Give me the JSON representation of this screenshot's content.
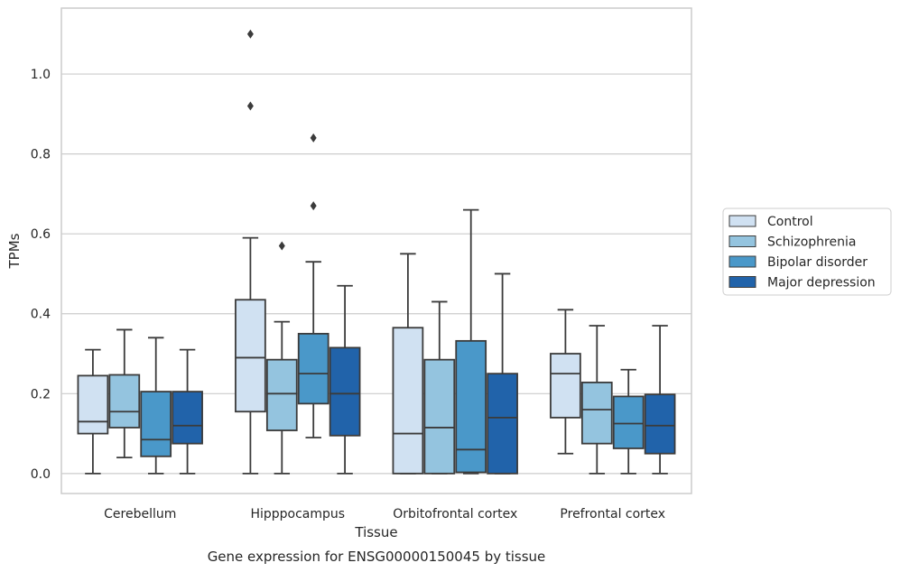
{
  "chart_data": {
    "type": "box",
    "title": "Gene expression for ENSG00000150045 by tissue",
    "xlabel": "Tissue",
    "ylabel": "TPMs",
    "ylim": [
      -0.05,
      1.165
    ],
    "yticks": [
      "0.0",
      "0.2",
      "0.4",
      "0.6",
      "0.8",
      "1.0"
    ],
    "grid": "horizontal",
    "legend_position": "right",
    "categories": [
      "Cerebellum",
      "Hipppocampus",
      "Orbitofrontal cortex",
      "Prefrontal cortex"
    ],
    "series": [
      {
        "name": "Control",
        "color": "#d0e1f2",
        "boxes": [
          {
            "whisker_low": 0.0,
            "q1": 0.1,
            "median": 0.13,
            "q3": 0.245,
            "whisker_high": 0.31,
            "outliers": []
          },
          {
            "whisker_low": 0.0,
            "q1": 0.155,
            "median": 0.29,
            "q3": 0.435,
            "whisker_high": 0.59,
            "outliers": [
              0.92,
              1.1
            ]
          },
          {
            "whisker_low": 0.0,
            "q1": 0.0,
            "median": 0.1,
            "q3": 0.365,
            "whisker_high": 0.55,
            "outliers": []
          },
          {
            "whisker_low": 0.05,
            "q1": 0.14,
            "median": 0.25,
            "q3": 0.3,
            "whisker_high": 0.41,
            "outliers": []
          }
        ]
      },
      {
        "name": "Schizophrenia",
        "color": "#94c4df",
        "boxes": [
          {
            "whisker_low": 0.04,
            "q1": 0.115,
            "median": 0.155,
            "q3": 0.247,
            "whisker_high": 0.36,
            "outliers": []
          },
          {
            "whisker_low": 0.0,
            "q1": 0.108,
            "median": 0.2,
            "q3": 0.285,
            "whisker_high": 0.38,
            "outliers": [
              0.57
            ]
          },
          {
            "whisker_low": 0.0,
            "q1": 0.0,
            "median": 0.115,
            "q3": 0.285,
            "whisker_high": 0.43,
            "outliers": []
          },
          {
            "whisker_low": 0.0,
            "q1": 0.075,
            "median": 0.16,
            "q3": 0.228,
            "whisker_high": 0.37,
            "outliers": []
          }
        ]
      },
      {
        "name": "Bipolar disorder",
        "color": "#4a98c9",
        "boxes": [
          {
            "whisker_low": 0.0,
            "q1": 0.043,
            "median": 0.085,
            "q3": 0.205,
            "whisker_high": 0.34,
            "outliers": []
          },
          {
            "whisker_low": 0.09,
            "q1": 0.175,
            "median": 0.25,
            "q3": 0.35,
            "whisker_high": 0.53,
            "outliers": [
              0.67,
              0.84
            ]
          },
          {
            "whisker_low": 0.0,
            "q1": 0.003,
            "median": 0.06,
            "q3": 0.332,
            "whisker_high": 0.66,
            "outliers": []
          },
          {
            "whisker_low": 0.0,
            "q1": 0.063,
            "median": 0.125,
            "q3": 0.193,
            "whisker_high": 0.26,
            "outliers": []
          }
        ]
      },
      {
        "name": "Major depression",
        "color": "#2163aa",
        "boxes": [
          {
            "whisker_low": 0.0,
            "q1": 0.075,
            "median": 0.12,
            "q3": 0.205,
            "whisker_high": 0.31,
            "outliers": []
          },
          {
            "whisker_low": 0.0,
            "q1": 0.095,
            "median": 0.2,
            "q3": 0.315,
            "whisker_high": 0.47,
            "outliers": []
          },
          {
            "whisker_low": 0.0,
            "q1": 0.0,
            "median": 0.14,
            "q3": 0.25,
            "whisker_high": 0.5,
            "outliers": []
          },
          {
            "whisker_low": 0.0,
            "q1": 0.05,
            "median": 0.12,
            "q3": 0.198,
            "whisker_high": 0.37,
            "outliers": []
          }
        ]
      }
    ]
  }
}
